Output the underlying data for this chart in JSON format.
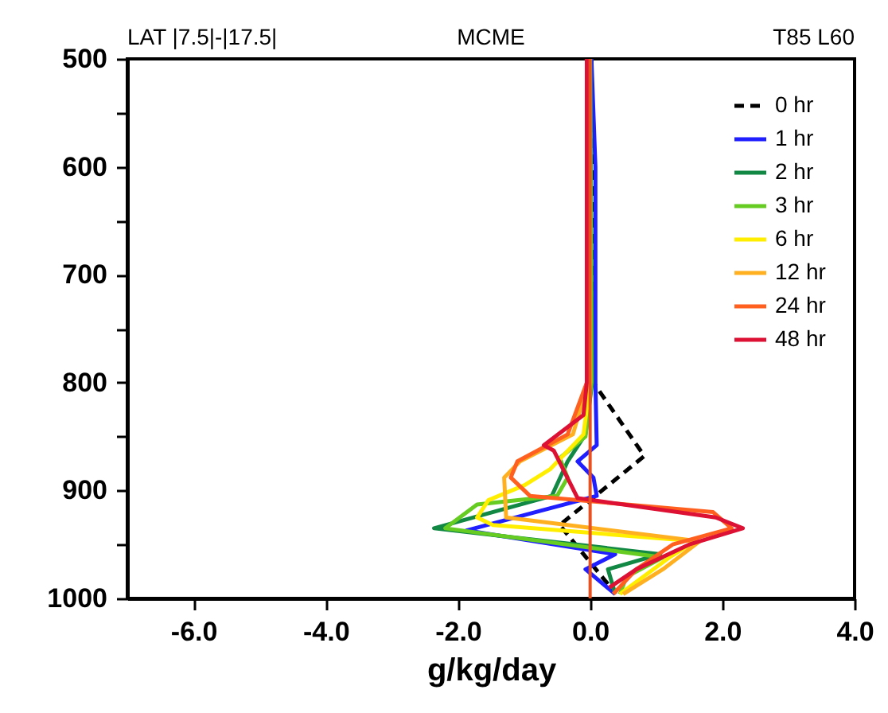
{
  "chart_data": {
    "type": "line",
    "orientation": "horizontal",
    "title": "MCME",
    "annotations": [
      "LAT |7.5|-|17.5|",
      "T85 L60"
    ],
    "xlabel": "g/kg/day",
    "xlim": [
      -7,
      4
    ],
    "xticks": [
      {
        "value": -6,
        "label": "-6.0"
      },
      {
        "value": -4,
        "label": "-4.0"
      },
      {
        "value": -2,
        "label": "-2.0"
      },
      {
        "value": 0,
        "label": "0.0"
      },
      {
        "value": 2,
        "label": "2.0"
      },
      {
        "value": 4,
        "label": "4.0"
      }
    ],
    "ylim": [
      1000,
      500
    ],
    "yticks": [
      500,
      600,
      700,
      800,
      900,
      1000,
      {
        "value": 550,
        "label": null
      },
      {
        "value": 650,
        "label": null
      },
      {
        "value": 750,
        "label": null
      },
      {
        "value": 850,
        "label": null
      },
      {
        "value": 950,
        "label": null
      }
    ],
    "legend": "top right",
    "grid": false,
    "marker": "none",
    "ref_lines": [
      {
        "axis": "x",
        "value": 0,
        "color": "#e8501e"
      }
    ],
    "series": [
      {
        "name": "0 hr",
        "color": "#000000",
        "line_style": "dashed",
        "x": [
          500,
          800,
          868,
          932,
          995
        ],
        "values": [
          0.02,
          0.05,
          0.82,
          -0.46,
          0.38
        ]
      },
      {
        "name": "1 hr",
        "color": "#1f1fff",
        "x": [
          500,
          600,
          800,
          858,
          873,
          888,
          905,
          937,
          959,
          973,
          996
        ],
        "values": [
          0.02,
          0.08,
          0.08,
          0.1,
          -0.19,
          0.05,
          0.1,
          -1.87,
          0.38,
          -0.07,
          0.38
        ]
      },
      {
        "name": "2 hr",
        "color": "#118844",
        "x": [
          500,
          800,
          848,
          873,
          905,
          935,
          959,
          973,
          996
        ],
        "values": [
          0,
          0.03,
          -0.07,
          -0.34,
          -0.58,
          -2.36,
          1.06,
          0.27,
          0.38
        ]
      },
      {
        "name": "3 hr",
        "color": "#66cc22",
        "x": [
          500,
          800,
          850,
          870,
          888,
          905,
          913,
          935,
          962,
          980,
          996
        ],
        "values": [
          0,
          0.02,
          -0.07,
          -0.46,
          -0.34,
          -0.5,
          -1.71,
          -2.19,
          1.1,
          0.55,
          0.45
        ]
      },
      {
        "name": "6 hr",
        "color": "#ffee00",
        "x": [
          500,
          800,
          848,
          880,
          895,
          909,
          925,
          932,
          947,
          962,
          996
        ],
        "values": [
          -0.02,
          0,
          -0.1,
          -0.6,
          -0.99,
          -1.54,
          -1.71,
          -1.47,
          1.59,
          1.2,
          0.45
        ]
      },
      {
        "name": "12 hr",
        "color": "#ffb020",
        "x": [
          500,
          800,
          848,
          873,
          888,
          925,
          947,
          973,
          996
        ],
        "values": [
          -0.05,
          -0.03,
          -0.26,
          -1.06,
          -1.3,
          -1.27,
          1.66,
          1.1,
          0.5
        ]
      },
      {
        "name": "24 hr",
        "color": "#ff6020",
        "x": [
          500,
          800,
          848,
          873,
          888,
          905,
          920,
          935,
          950,
          973,
          996
        ],
        "values": [
          -0.05,
          -0.05,
          -0.34,
          -1.1,
          -1.2,
          -0.91,
          1.86,
          2.14,
          1.25,
          0.7,
          0.35
        ]
      },
      {
        "name": "48 hr",
        "color": "#dd1133",
        "x": [
          500,
          800,
          830,
          858,
          863,
          907,
          925,
          935,
          950,
          973,
          990
        ],
        "values": [
          -0.05,
          -0.05,
          -0.1,
          -0.7,
          -0.55,
          -0.19,
          1.9,
          2.31,
          1.5,
          0.7,
          0.29
        ]
      }
    ]
  }
}
